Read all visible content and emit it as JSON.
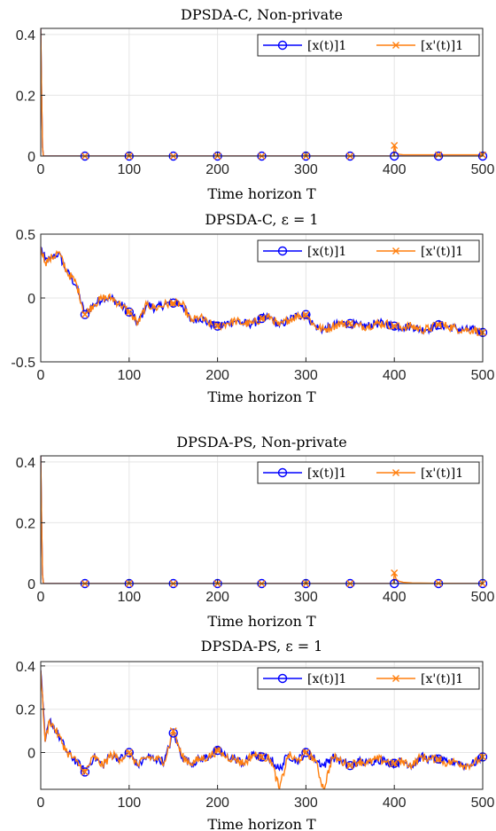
{
  "chart_data": [
    {
      "type": "line",
      "title": "DPSDA-C, Non-private",
      "xlabel": "Time horizon T",
      "ylabel": "",
      "xlim": [
        0,
        500
      ],
      "ylim": [
        0,
        0.42
      ],
      "xticks": [
        "0",
        "100",
        "200",
        "300",
        "400",
        "500"
      ],
      "yticks": [
        {
          "v": 0,
          "label": "0"
        },
        {
          "v": 0.2,
          "label": "0.2"
        },
        {
          "v": 0.4,
          "label": "0.4"
        }
      ],
      "grid": true,
      "legend": "top-right",
      "series": [
        {
          "name": "[x(t)]1",
          "color": "#0000ff",
          "marker": "circle",
          "x": [
            0,
            1,
            2,
            3,
            5,
            50,
            100,
            150,
            200,
            250,
            300,
            350,
            400,
            450,
            500
          ],
          "y": [
            0.42,
            0.2,
            0.03,
            0.0,
            0.0,
            0,
            0,
            0,
            0,
            0,
            0,
            0,
            0,
            0,
            0
          ]
        },
        {
          "name": "[x'(t)]1",
          "color": "#ff7f0e",
          "marker": "x",
          "x": [
            0,
            1,
            2,
            3,
            5,
            50,
            100,
            150,
            200,
            250,
            300,
            350,
            399,
            400,
            402,
            405,
            410,
            450,
            500
          ],
          "y": [
            0.42,
            0.2,
            0.03,
            0.0,
            0.0,
            0,
            0,
            0,
            0,
            0,
            0,
            0,
            0,
            0.035,
            0.012,
            0.006,
            0.004,
            0.004,
            0.004
          ]
        }
      ]
    },
    {
      "type": "line",
      "title": "DPSDA-C, ε = 1",
      "xlabel": "Time horizon T",
      "ylabel": "",
      "xlim": [
        0,
        500
      ],
      "ylim": [
        -0.5,
        0.5
      ],
      "xticks": [
        "0",
        "100",
        "200",
        "300",
        "400",
        "500"
      ],
      "yticks": [
        {
          "v": -0.5,
          "label": "-0.5"
        },
        {
          "v": 0,
          "label": "0"
        },
        {
          "v": 0.5,
          "label": "0.5"
        }
      ],
      "grid": true,
      "legend": "top-right",
      "series": [
        {
          "name": "[x(t)]1",
          "color": "#0000ff",
          "marker": "circle",
          "x": [
            0,
            5,
            10,
            20,
            30,
            40,
            50,
            60,
            70,
            80,
            90,
            100,
            110,
            120,
            130,
            140,
            150,
            160,
            170,
            180,
            190,
            200,
            210,
            220,
            230,
            240,
            250,
            260,
            270,
            280,
            290,
            300,
            310,
            320,
            330,
            340,
            350,
            360,
            370,
            380,
            390,
            400,
            410,
            420,
            430,
            440,
            450,
            460,
            470,
            480,
            490,
            500
          ],
          "y": [
            0.4,
            0.3,
            0.3,
            0.35,
            0.2,
            0.1,
            -0.13,
            -0.05,
            0.0,
            0.0,
            -0.05,
            -0.11,
            -0.2,
            -0.05,
            -0.08,
            -0.05,
            -0.04,
            -0.05,
            -0.18,
            -0.15,
            -0.2,
            -0.22,
            -0.2,
            -0.18,
            -0.2,
            -0.2,
            -0.16,
            -0.15,
            -0.22,
            -0.17,
            -0.14,
            -0.13,
            -0.22,
            -0.25,
            -0.22,
            -0.2,
            -0.2,
            -0.22,
            -0.22,
            -0.2,
            -0.2,
            -0.22,
            -0.23,
            -0.22,
            -0.25,
            -0.24,
            -0.21,
            -0.22,
            -0.24,
            -0.25,
            -0.25,
            -0.27
          ]
        },
        {
          "name": "[x'(t)]1",
          "color": "#ff7f0e",
          "marker": "x",
          "x": [
            0,
            5,
            10,
            20,
            30,
            40,
            50,
            60,
            70,
            80,
            90,
            100,
            110,
            120,
            130,
            140,
            150,
            160,
            170,
            180,
            190,
            200,
            210,
            220,
            230,
            240,
            250,
            260,
            270,
            280,
            290,
            300,
            310,
            320,
            330,
            340,
            350,
            360,
            370,
            380,
            390,
            400,
            410,
            420,
            430,
            440,
            450,
            460,
            470,
            480,
            490,
            500
          ],
          "y": [
            0.4,
            0.28,
            0.3,
            0.36,
            0.2,
            0.12,
            -0.13,
            -0.05,
            0.0,
            0.0,
            -0.05,
            -0.11,
            -0.2,
            -0.05,
            -0.08,
            -0.05,
            -0.04,
            -0.05,
            -0.18,
            -0.15,
            -0.2,
            -0.22,
            -0.2,
            -0.18,
            -0.2,
            -0.2,
            -0.16,
            -0.15,
            -0.22,
            -0.17,
            -0.14,
            -0.13,
            -0.22,
            -0.25,
            -0.22,
            -0.2,
            -0.2,
            -0.22,
            -0.22,
            -0.2,
            -0.2,
            -0.22,
            -0.23,
            -0.22,
            -0.25,
            -0.24,
            -0.21,
            -0.22,
            -0.24,
            -0.25,
            -0.25,
            -0.27
          ]
        }
      ]
    },
    {
      "type": "line",
      "title": "DPSDA-PS, Non-private",
      "xlabel": "Time horizon T",
      "ylabel": "",
      "xlim": [
        0,
        500
      ],
      "ylim": [
        0,
        0.42
      ],
      "xticks": [
        "0",
        "100",
        "200",
        "300",
        "400",
        "500"
      ],
      "yticks": [
        {
          "v": 0,
          "label": "0"
        },
        {
          "v": 0.2,
          "label": "0.2"
        },
        {
          "v": 0.4,
          "label": "0.4"
        }
      ],
      "grid": true,
      "legend": "top-right",
      "series": [
        {
          "name": "[x(t)]1",
          "color": "#0000ff",
          "marker": "circle",
          "x": [
            0,
            1,
            2,
            3,
            5,
            50,
            100,
            150,
            200,
            250,
            300,
            350,
            400,
            450,
            500
          ],
          "y": [
            0.42,
            0.2,
            0.03,
            0.0,
            0.0,
            0,
            0,
            0,
            0,
            0,
            0,
            0,
            0,
            0,
            0
          ]
        },
        {
          "name": "[x'(t)]1",
          "color": "#ff7f0e",
          "marker": "x",
          "x": [
            0,
            1,
            2,
            3,
            5,
            50,
            100,
            150,
            200,
            250,
            300,
            350,
            399,
            400,
            402,
            405,
            410,
            420,
            450,
            500
          ],
          "y": [
            0.42,
            0.2,
            0.03,
            0.0,
            0.0,
            0,
            0,
            0,
            0,
            0,
            0,
            0,
            0,
            0.035,
            0.015,
            0.008,
            0.004,
            0.002,
            0.001,
            0.0
          ]
        }
      ]
    },
    {
      "type": "line",
      "title": "DPSDA-PS, ε = 1",
      "xlabel": "Time horizon T",
      "ylabel": "",
      "xlim": [
        0,
        500
      ],
      "ylim": [
        -0.17,
        0.42
      ],
      "xticks": [
        "0",
        "100",
        "200",
        "300",
        "400",
        "500"
      ],
      "yticks": [
        {
          "v": 0,
          "label": "0"
        },
        {
          "v": 0.2,
          "label": "0.2"
        },
        {
          "v": 0.4,
          "label": "0.4"
        }
      ],
      "grid": true,
      "legend": "top-right",
      "series": [
        {
          "name": "[x(t)]1",
          "color": "#0000ff",
          "marker": "circle",
          "x": [
            0,
            5,
            10,
            20,
            30,
            40,
            50,
            60,
            70,
            80,
            90,
            100,
            110,
            120,
            130,
            140,
            150,
            160,
            170,
            180,
            190,
            200,
            210,
            220,
            230,
            240,
            250,
            260,
            270,
            280,
            290,
            300,
            310,
            320,
            330,
            340,
            350,
            360,
            370,
            380,
            390,
            400,
            410,
            420,
            430,
            440,
            450,
            460,
            470,
            480,
            490,
            500
          ],
          "y": [
            0.38,
            0.05,
            0.15,
            0.08,
            0.0,
            -0.04,
            -0.09,
            -0.02,
            -0.06,
            -0.01,
            -0.03,
            0.0,
            -0.06,
            -0.02,
            -0.03,
            -0.04,
            0.09,
            -0.02,
            -0.05,
            -0.03,
            -0.02,
            0.01,
            -0.02,
            -0.03,
            -0.05,
            -0.01,
            -0.02,
            -0.03,
            -0.08,
            -0.01,
            -0.04,
            0.0,
            -0.03,
            -0.06,
            -0.02,
            -0.04,
            -0.06,
            -0.04,
            -0.05,
            -0.03,
            -0.04,
            -0.05,
            -0.04,
            -0.06,
            -0.02,
            -0.03,
            -0.03,
            -0.05,
            -0.04,
            -0.06,
            -0.05,
            -0.02
          ]
        },
        {
          "name": "[x'(t)]1",
          "color": "#ff7f0e",
          "marker": "x",
          "x": [
            0,
            5,
            10,
            20,
            30,
            40,
            50,
            60,
            70,
            80,
            90,
            100,
            110,
            120,
            130,
            140,
            150,
            160,
            170,
            180,
            190,
            200,
            210,
            220,
            230,
            240,
            250,
            260,
            270,
            280,
            290,
            300,
            310,
            320,
            330,
            340,
            350,
            360,
            370,
            380,
            390,
            400,
            410,
            420,
            430,
            440,
            450,
            460,
            470,
            480,
            490,
            500
          ],
          "y": [
            0.38,
            0.05,
            0.15,
            0.08,
            0.0,
            -0.04,
            -0.09,
            -0.02,
            -0.06,
            -0.01,
            -0.03,
            0.0,
            -0.06,
            -0.02,
            -0.03,
            -0.04,
            0.1,
            -0.02,
            -0.05,
            -0.03,
            -0.02,
            0.01,
            -0.02,
            -0.03,
            -0.05,
            -0.01,
            -0.02,
            -0.03,
            -0.17,
            -0.01,
            -0.04,
            0.0,
            -0.03,
            -0.17,
            -0.02,
            -0.04,
            -0.06,
            -0.04,
            -0.05,
            -0.03,
            -0.04,
            -0.05,
            -0.04,
            -0.06,
            -0.02,
            -0.03,
            -0.03,
            -0.05,
            -0.04,
            -0.06,
            -0.05,
            -0.02
          ]
        }
      ]
    }
  ]
}
